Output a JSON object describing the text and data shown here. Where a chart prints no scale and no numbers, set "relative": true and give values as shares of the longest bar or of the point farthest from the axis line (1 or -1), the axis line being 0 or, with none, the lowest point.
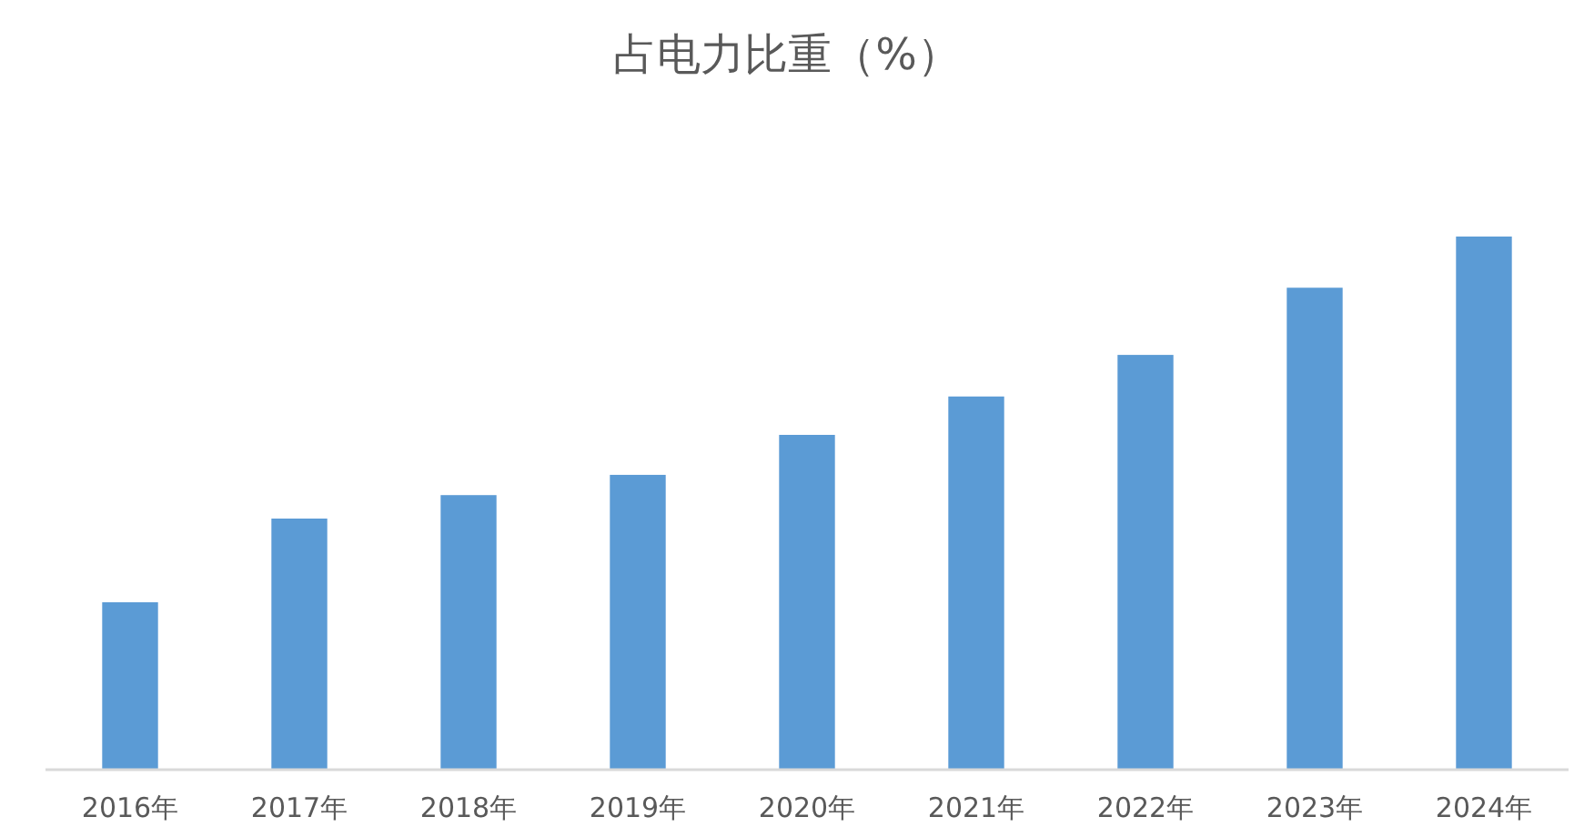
{
  "chart_data": {
    "type": "bar",
    "title": "占电力比重（%）",
    "relative": true,
    "categories": [
      "2016年",
      "2017年",
      "2018年",
      "2019年",
      "2020年",
      "2021年",
      "2022年",
      "2023年",
      "2024年"
    ],
    "values": [
      0.314,
      0.471,
      0.515,
      0.553,
      0.628,
      0.7,
      0.778,
      0.904,
      1
    ],
    "color": "#5b9bd5"
  }
}
